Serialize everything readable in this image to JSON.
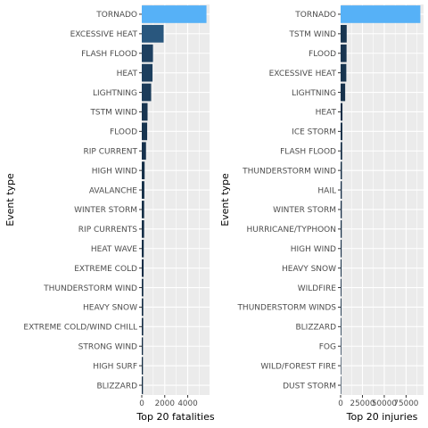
{
  "chart_data": [
    {
      "type": "bar",
      "orientation": "horizontal",
      "xlabel": "Top 20 fatalities",
      "ylabel": "Event type",
      "xlim": [
        0,
        5900
      ],
      "x_ticks": [
        0,
        2000,
        4000
      ],
      "x_tick_labels": [
        "0",
        "2000",
        "4000"
      ],
      "grid": true,
      "categories": [
        "TORNADO",
        "EXCESSIVE HEAT",
        "FLASH FLOOD",
        "HEAT",
        "LIGHTNING",
        "TSTM WIND",
        "FLOOD",
        "RIP CURRENT",
        "HIGH WIND",
        "AVALANCHE",
        "WINTER STORM",
        "RIP CURRENTS",
        "HEAT WAVE",
        "EXTREME COLD",
        "THUNDERSTORM WIND",
        "HEAVY SNOW",
        "EXTREME COLD/WIND CHILL",
        "STRONG WIND",
        "HIGH SURF",
        "BLIZZARD"
      ],
      "values": [
        5633,
        1903,
        978,
        937,
        816,
        504,
        470,
        368,
        248,
        224,
        206,
        204,
        172,
        160,
        133,
        127,
        125,
        103,
        101,
        101
      ],
      "color_scale": [
        "#132b43",
        "#56b1f7"
      ]
    },
    {
      "type": "bar",
      "orientation": "horizontal",
      "xlabel": "Top 20 injuries",
      "ylabel": "Event type",
      "xlim": [
        0,
        95000
      ],
      "x_ticks": [
        0,
        25000,
        50000,
        75000
      ],
      "x_tick_labels": [
        "0",
        "25000",
        "50000",
        "75000"
      ],
      "grid": true,
      "categories": [
        "TORNADO",
        "TSTM WIND",
        "FLOOD",
        "EXCESSIVE HEAT",
        "LIGHTNING",
        "HEAT",
        "ICE STORM",
        "FLASH FLOOD",
        "THUNDERSTORM WIND",
        "HAIL",
        "WINTER STORM",
        "HURRICANE/TYPHOON",
        "HIGH WIND",
        "HEAVY SNOW",
        "WILDFIRE",
        "THUNDERSTORM WINDS",
        "BLIZZARD",
        "FOG",
        "WILD/FOREST FIRE",
        "DUST STORM"
      ],
      "values": [
        91346,
        6957,
        6789,
        6525,
        5230,
        2100,
        1975,
        1777,
        1488,
        1361,
        1321,
        1275,
        1137,
        1021,
        911,
        908,
        805,
        734,
        545,
        440
      ],
      "color_scale": [
        "#132b43",
        "#56b1f7"
      ]
    }
  ]
}
